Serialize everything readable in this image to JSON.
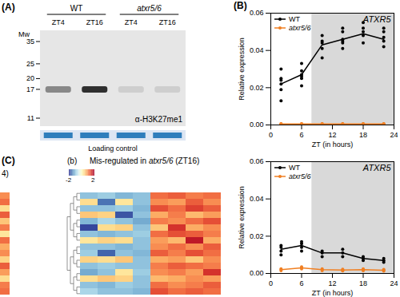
{
  "chart_data": [
    {
      "type": "line",
      "panel": "(B)",
      "title": "ATXR5",
      "x_label": "ZT (in hours)",
      "y_label": "Relative expression",
      "xlim": [
        0,
        24
      ],
      "xticks": [
        0,
        6,
        12,
        18,
        24
      ],
      "ylim": [
        0,
        0.06
      ],
      "yticks": [
        {
          "value": 0,
          "label": "0.00"
        },
        {
          "value": 0.02,
          "label": "0.02"
        },
        {
          "value": 0.04,
          "label": "0.04"
        },
        {
          "value": 0.06,
          "label": "0.06"
        }
      ],
      "legend": "top-left",
      "shaded_x": [
        8,
        24
      ],
      "x": [
        2,
        6,
        10,
        14,
        18,
        22
      ],
      "series": [
        {
          "name": "WT",
          "color": "#000000",
          "marker": "circle",
          "values": [
            0.022,
            0.027,
            0.043,
            0.046,
            0.049,
            0.046
          ],
          "replicates": [
            [
              0.013,
              0.019,
              0.022,
              0.024,
              0.025,
              0.03
            ],
            [
              0.021,
              0.025,
              0.026,
              0.027,
              0.029,
              0.033
            ],
            [
              0.036,
              0.041,
              0.044,
              0.045,
              0.048
            ],
            [
              0.041,
              0.044,
              0.045,
              0.046,
              0.05,
              0.052
            ],
            [
              0.044,
              0.048,
              0.05,
              0.052,
              0.055
            ],
            [
              0.042,
              0.045,
              0.047,
              0.05,
              0.052
            ]
          ]
        },
        {
          "name": "atxr5/6",
          "color": "#f07f22",
          "marker": "circle",
          "values": [
            0.0005,
            0.0005,
            0.0005,
            0.0005,
            0.0005,
            0.0005
          ],
          "replicates": [
            [
              0.0004,
              0.0005,
              0.0006
            ],
            [
              0.0004,
              0.0005,
              0.0006
            ],
            [
              0.0004,
              0.0005,
              0.0006
            ],
            [
              0.0004,
              0.0005,
              0.0006
            ],
            [
              0.0004,
              0.0005,
              0.0006
            ],
            [
              0.0004,
              0.0005,
              0.0006
            ]
          ]
        }
      ]
    },
    {
      "type": "line",
      "title": "ATXR5",
      "x_label": "ZT (in hours)",
      "y_label": "Relative expression",
      "xlim": [
        0,
        24
      ],
      "xticks": [
        0,
        6,
        12,
        18,
        24
      ],
      "ylim": [
        0,
        0.06
      ],
      "yticks": [
        {
          "value": 0,
          "label": "0.00"
        },
        {
          "value": 0.02,
          "label": "0.02"
        },
        {
          "value": 0.04,
          "label": "0.04"
        },
        {
          "value": 0.06,
          "label": "0.06"
        }
      ],
      "legend": "top-left",
      "shaded_x": [
        8,
        24
      ],
      "x": [
        2,
        6,
        10,
        14,
        18,
        22
      ],
      "series": [
        {
          "name": "WT",
          "color": "#000000",
          "marker": "circle",
          "values": [
            0.013,
            0.015,
            0.011,
            0.011,
            0.008,
            0.007
          ],
          "replicates": [
            [
              0.01,
              0.012,
              0.014,
              0.015
            ],
            [
              0.012,
              0.014,
              0.016,
              0.017
            ],
            [
              0.009,
              0.011,
              0.012
            ],
            [
              0.009,
              0.011,
              0.013
            ],
            [
              0.007,
              0.008,
              0.009
            ],
            [
              0.006,
              0.007,
              0.008
            ]
          ]
        },
        {
          "name": "atxr5/6",
          "color": "#f07f22",
          "marker": "circle",
          "values": [
            0.002,
            0.003,
            0.002,
            0.0018,
            0.002,
            0.0017
          ],
          "replicates": [
            [
              0.0015,
              0.002,
              0.0025
            ],
            [
              0.0025,
              0.003,
              0.0035
            ],
            [
              0.0015,
              0.002,
              0.0025
            ],
            [
              0.0014,
              0.0018,
              0.0022
            ],
            [
              0.0015,
              0.002,
              0.0025
            ],
            [
              0.0013,
              0.0017,
              0.0021
            ]
          ]
        }
      ]
    },
    {
      "type": "heatmap",
      "panel": "(C)",
      "subpanel": "(b)",
      "title": "Mis-regulated in atxr5/6 (ZT16)",
      "cells": [
        [
          -1.0,
          -0.9,
          -1.1,
          -1.0,
          1.2,
          1.3,
          1.1,
          1.2
        ],
        [
          0.4,
          -1.6,
          0.3,
          -1.0,
          1.0,
          0.9,
          1.3,
          1.0
        ],
        [
          -1.0,
          -1.0,
          -0.9,
          -1.1,
          1.4,
          1.2,
          1.5,
          1.3
        ],
        [
          0.6,
          0.5,
          -1.8,
          -1.0,
          0.8,
          1.1,
          0.7,
          0.9
        ],
        [
          -1.1,
          -0.8,
          -1.0,
          -1.2,
          1.1,
          1.0,
          1.2,
          1.4
        ],
        [
          -1.9,
          0.4,
          0.5,
          -1.0,
          0.6,
          1.6,
          0.8,
          1.0
        ],
        [
          -1.0,
          -1.1,
          -1.0,
          -0.9,
          1.2,
          1.4,
          1.3,
          1.1
        ],
        [
          0.3,
          0.5,
          0.4,
          -1.0,
          0.9,
          0.7,
          1.8,
          0.8
        ],
        [
          -1.0,
          -1.0,
          -1.1,
          -1.0,
          1.0,
          1.2,
          1.0,
          1.3
        ],
        [
          -0.9,
          -1.7,
          -1.0,
          -1.1,
          1.3,
          1.1,
          1.4,
          1.2
        ],
        [
          0.5,
          0.4,
          0.6,
          -1.0,
          0.8,
          0.9,
          0.6,
          1.0
        ],
        [
          -1.0,
          -0.9,
          -1.0,
          -1.0,
          1.1,
          1.3,
          1.2,
          1.1
        ],
        [
          -1.2,
          -1.0,
          0.3,
          -0.9,
          1.0,
          1.1,
          0.9,
          1.6
        ],
        [
          0.4,
          0.6,
          0.5,
          -1.0,
          0.7,
          0.8,
          1.0,
          0.9
        ],
        [
          -1.0,
          -1.1,
          -0.9,
          -1.0,
          1.2,
          1.0,
          1.1,
          1.3
        ],
        [
          -0.8,
          -1.0,
          -1.0,
          -1.1,
          1.4,
          1.2,
          1.3,
          1.2
        ]
      ],
      "colorbar": {
        "range": [
          -2,
          2
        ],
        "ticks": [
          -2,
          2
        ]
      },
      "partial_panel": {
        "label": "4)",
        "values": [
          1.0,
          1.2,
          0.4,
          1.3,
          0.6,
          1.1,
          0.3,
          1.2,
          0.8,
          1.0,
          0.5,
          1.3,
          0.9,
          0.4,
          1.1,
          1.2
        ]
      }
    }
  ],
  "blot": {
    "panel": "(A)",
    "groups": [
      {
        "name": "WT",
        "lanes": [
          "ZT4",
          "ZT16"
        ]
      },
      {
        "name": "atxr5/6",
        "lanes": [
          "ZT4",
          "ZT16"
        ]
      }
    ],
    "mw_label": "Mw",
    "mw_markers": [
      35,
      25,
      20,
      17,
      11
    ],
    "band_kda": 17,
    "band_intensity": [
      0.55,
      0.85,
      0.3,
      0.3
    ],
    "antibody": "α-H3K27me1",
    "loading_label": "Loading control",
    "loading_intensity": [
      0.7,
      0.7,
      0.7,
      0.7
    ]
  }
}
